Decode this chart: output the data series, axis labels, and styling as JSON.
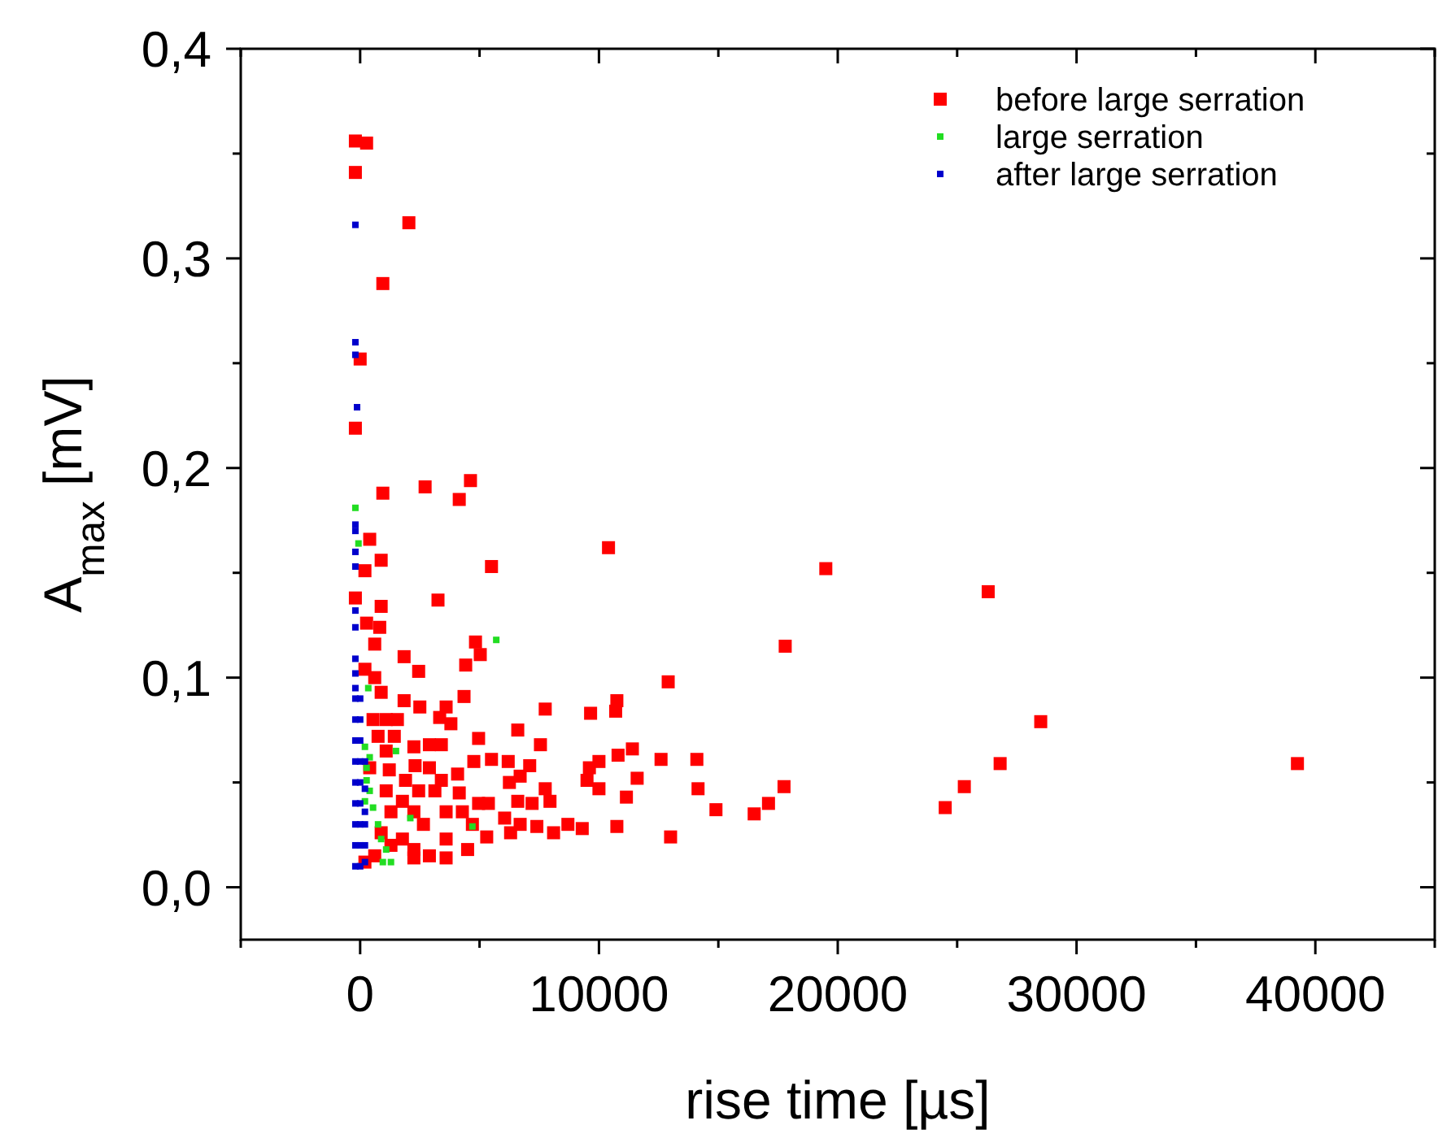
{
  "chart_data": {
    "type": "scatter",
    "xlabel": "rise time [µs]",
    "ylabel": "A$_{max}$ [mV]",
    "xlim": [
      -5000,
      45000
    ],
    "ylim": [
      -0.025,
      0.4
    ],
    "xticks": [
      {
        "value": -5000,
        "label": null
      },
      0,
      {
        "value": 5000,
        "label": null
      },
      10000,
      {
        "value": 15000,
        "label": null
      },
      20000,
      {
        "value": 25000,
        "label": null
      },
      30000,
      {
        "value": 35000,
        "label": null
      },
      40000,
      {
        "value": 45000,
        "label": null
      }
    ],
    "yticks": [
      {
        "value": 0,
        "label": "0,0"
      },
      {
        "value": 0.05,
        "label": null
      },
      {
        "value": 0.1,
        "label": "0,1"
      },
      {
        "value": 0.15,
        "label": null
      },
      {
        "value": 0.2,
        "label": "0,2"
      },
      {
        "value": 0.25,
        "label": null
      },
      {
        "value": 0.3,
        "label": "0,3"
      },
      {
        "value": 0.35,
        "label": null
      },
      {
        "value": 0.4,
        "label": "0,4"
      }
    ],
    "grid": false,
    "legend": "top right",
    "marker": "square",
    "series": [
      {
        "name": "before large serration",
        "color": "#ff0000",
        "x": [
          -200,
          270,
          -200,
          2040,
          950,
          0,
          -200,
          950,
          2720,
          4620,
          4150,
          10400,
          19500,
          26300,
          17800,
          28500,
          26800,
          17750,
          17100,
          16500,
          24500,
          25300,
          39250,
          14900,
          5500,
          3260,
          4830,
          5030,
          1840,
          4420,
          2450,
          12900,
          4350,
          10750,
          7750,
          9650,
          10700,
          3600,
          2500,
          1840,
          3330,
          3800,
          6600,
          4960,
          7550,
          11400,
          10800,
          12600,
          14100,
          5500,
          6200,
          7100,
          4760,
          10000,
          9600,
          11600,
          14150,
          10000,
          9500,
          7750,
          11150,
          10750,
          13000,
          9300,
          8700,
          8100,
          7400,
          6700,
          6050,
          6300,
          7200,
          7950,
          6600,
          6250,
          6700,
          2900,
          2250,
          3400,
          2300,
          2900,
          4080,
          3400,
          4150,
          4960,
          5370,
          4700,
          5300,
          3600,
          4500,
          2900,
          2250,
          400,
          880,
          200,
          -200,
          880,
          270,
          820,
          610,
          200,
          610,
          880,
          540,
          1090,
          1560,
          750,
          1430,
          1090,
          400,
          1220,
          1900,
          1090,
          1770,
          1290,
          2250,
          2650,
          880,
          1770,
          3600,
          4280,
          3130,
          2450,
          1290,
          2250,
          3600,
          610,
          200
        ],
        "values": [
          0.356,
          0.355,
          0.341,
          0.317,
          0.288,
          0.252,
          0.219,
          0.188,
          0.191,
          0.194,
          0.185,
          0.162,
          0.152,
          0.141,
          0.115,
          0.079,
          0.059,
          0.048,
          0.04,
          0.035,
          0.038,
          0.048,
          0.059,
          0.037,
          0.153,
          0.137,
          0.117,
          0.111,
          0.11,
          0.106,
          0.103,
          0.098,
          0.091,
          0.089,
          0.085,
          0.083,
          0.084,
          0.086,
          0.086,
          0.089,
          0.081,
          0.078,
          0.075,
          0.071,
          0.068,
          0.066,
          0.063,
          0.061,
          0.061,
          0.061,
          0.06,
          0.058,
          0.06,
          0.06,
          0.057,
          0.052,
          0.047,
          0.047,
          0.051,
          0.047,
          0.043,
          0.029,
          0.024,
          0.028,
          0.03,
          0.026,
          0.029,
          0.03,
          0.033,
          0.026,
          0.04,
          0.041,
          0.041,
          0.05,
          0.053,
          0.068,
          0.067,
          0.068,
          0.058,
          0.057,
          0.054,
          0.051,
          0.045,
          0.04,
          0.04,
          0.03,
          0.024,
          0.023,
          0.018,
          0.015,
          0.014,
          0.166,
          0.156,
          0.151,
          0.138,
          0.134,
          0.126,
          0.124,
          0.116,
          0.104,
          0.1,
          0.093,
          0.08,
          0.08,
          0.08,
          0.072,
          0.072,
          0.065,
          0.057,
          0.056,
          0.051,
          0.046,
          0.041,
          0.036,
          0.036,
          0.03,
          0.026,
          0.023,
          0.036,
          0.036,
          0.046,
          0.046,
          0.02,
          0.018,
          0.014,
          0.015,
          0.012
        ]
      },
      {
        "name": "large serration",
        "color": "#22dd22",
        "x": [
          -200,
          -70,
          340,
          5700,
          1500,
          2100,
          4700,
          950,
          200,
          400,
          270,
          400,
          540,
          750,
          880,
          1090,
          1290,
          200,
          270
        ],
        "values": [
          0.181,
          0.164,
          0.095,
          0.118,
          0.065,
          0.033,
          0.029,
          0.012,
          0.067,
          0.062,
          0.057,
          0.046,
          0.038,
          0.03,
          0.023,
          0.018,
          0.012,
          0.041,
          0.051
        ]
      },
      {
        "name": "after large serration",
        "color": "#0000cc",
        "x": [
          -200,
          -200,
          -200,
          -130,
          -200,
          -200,
          -200,
          -200,
          -200,
          -200,
          -200,
          -200,
          -200,
          -200,
          -200,
          -200,
          -200,
          -200,
          -200,
          -200,
          -200,
          -200,
          0,
          0,
          0,
          0,
          0,
          0,
          0,
          0,
          0,
          200,
          200,
          200,
          200,
          200,
          200
        ],
        "values": [
          0.316,
          0.26,
          0.254,
          0.229,
          0.173,
          0.17,
          0.16,
          0.153,
          0.132,
          0.124,
          0.109,
          0.102,
          0.095,
          0.09,
          0.08,
          0.07,
          0.06,
          0.05,
          0.04,
          0.03,
          0.02,
          0.01,
          0.09,
          0.08,
          0.07,
          0.06,
          0.05,
          0.04,
          0.03,
          0.02,
          0.01,
          0.047,
          0.036,
          0.03,
          0.02,
          0.012,
          0.06
        ]
      }
    ]
  }
}
